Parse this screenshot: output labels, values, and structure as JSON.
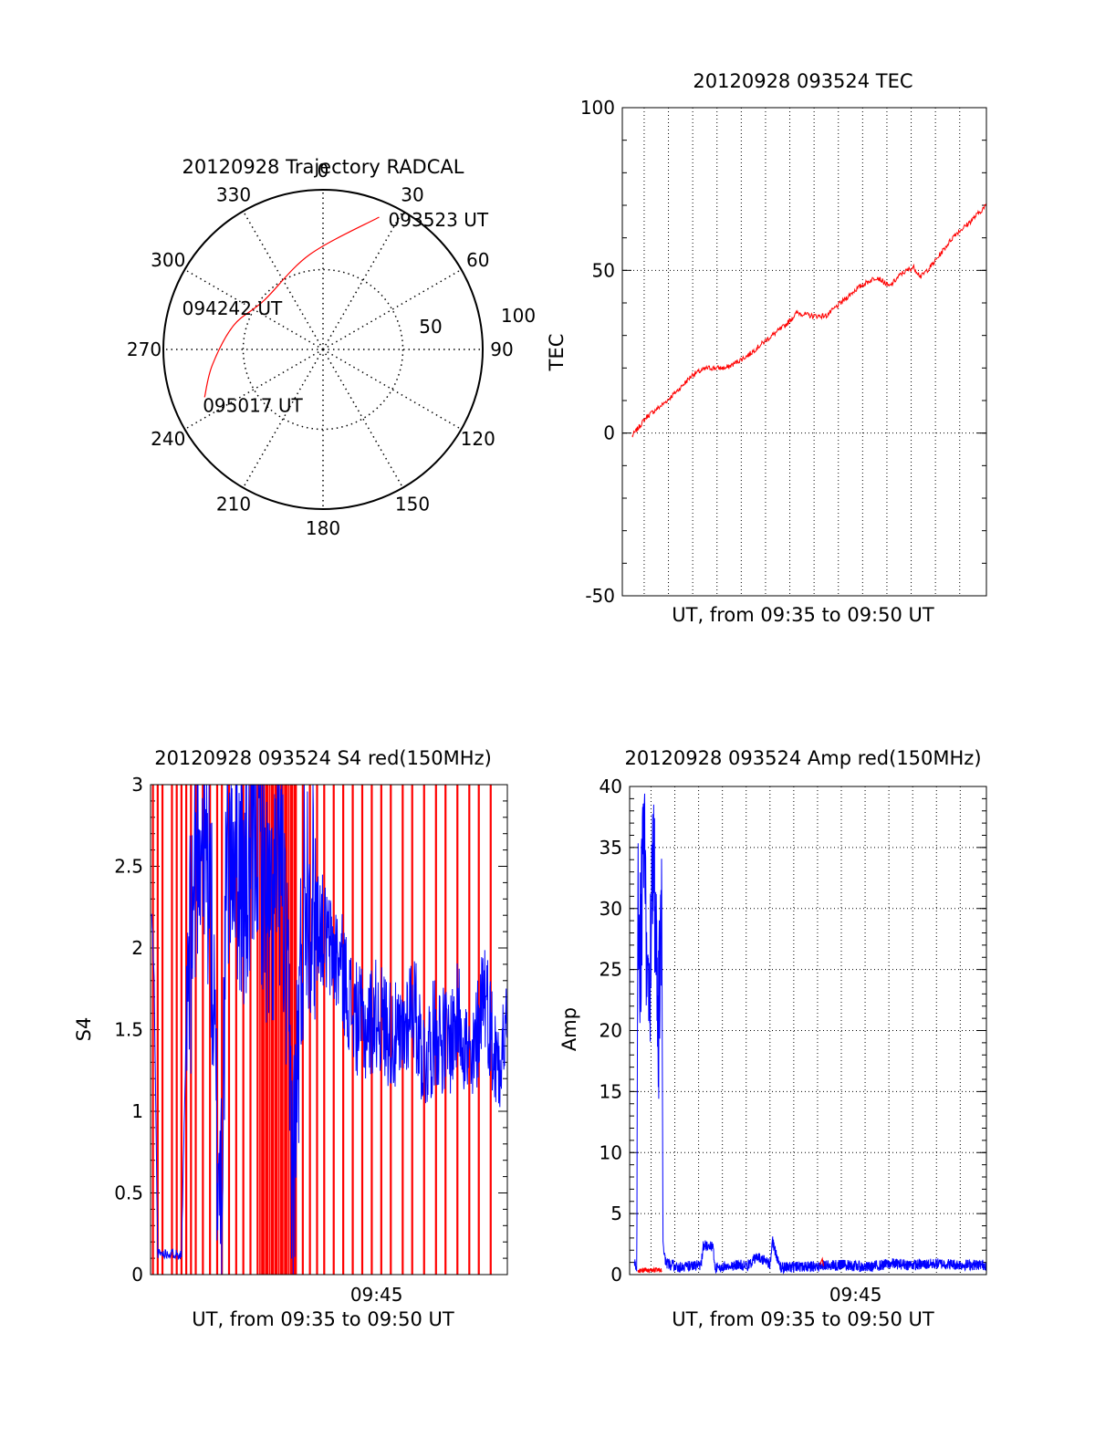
{
  "colors": {
    "red": "#ff0000",
    "blue": "#0000ff",
    "axis": "#000000",
    "grid": "#000000"
  },
  "chart_data": [
    {
      "id": "trajectory",
      "type": "polar",
      "title": "20120928 Trajectory RADCAL",
      "angle_labels": [
        "0",
        "30",
        "60",
        "90",
        "120",
        "150",
        "180",
        "210",
        "240",
        "270",
        "300",
        "330"
      ],
      "radial_labels": [
        "50",
        "100"
      ],
      "rlim": [
        0,
        100
      ],
      "radial_gridlines": [
        50
      ],
      "angle_gridlines": [
        0,
        30,
        60,
        90,
        120,
        150,
        180,
        210,
        240,
        270,
        300,
        330
      ],
      "trajectory_color": "red",
      "trajectory": [
        {
          "az": 23,
          "r": 90
        },
        {
          "az": 352,
          "r": 60
        },
        {
          "az": 310,
          "r": 48
        },
        {
          "az": 285,
          "r": 58
        },
        {
          "az": 262,
          "r": 70
        },
        {
          "az": 248,
          "r": 80
        }
      ],
      "annotations": [
        {
          "text": "093523 UT",
          "az": 23,
          "r": 90
        },
        {
          "text": "094242 UT",
          "az": 310,
          "r": 48
        },
        {
          "text": "095017 UT",
          "az": 248,
          "r": 80
        }
      ]
    },
    {
      "id": "tec",
      "type": "line",
      "title": "20120928 093524 TEC",
      "xlabel": "UT, from 09:35 to 09:50 UT",
      "ylabel": "TEC",
      "xlim": [
        0,
        15
      ],
      "ylim": [
        -50,
        100
      ],
      "yticks": [
        -50,
        0,
        50,
        100
      ],
      "x_gridlines": [
        0.9,
        1.9,
        2.9,
        3.9,
        4.9,
        5.9,
        6.9,
        7.9,
        8.9,
        9.9,
        10.9,
        11.9,
        12.9,
        13.9
      ],
      "y_gridlines": [
        0,
        50
      ],
      "series": [
        {
          "color": "red",
          "x": [
            0.4,
            1.0,
            1.7,
            2.4,
            2.9,
            3.5,
            4.3,
            5.2,
            6.0,
            6.7,
            7.2,
            7.8,
            8.4,
            9.0,
            9.6,
            10.0,
            10.5,
            11.0,
            11.5,
            12.0,
            12.3,
            12.8,
            13.3,
            13.7,
            14.2,
            14.6,
            15.0
          ],
          "y": [
            -1,
            5,
            9,
            14,
            18,
            20,
            20,
            24,
            29,
            33,
            37,
            36,
            36,
            40,
            44,
            46,
            48,
            45,
            49,
            51,
            48,
            52,
            57,
            61,
            64,
            67,
            70
          ]
        }
      ]
    },
    {
      "id": "s4",
      "type": "line",
      "title": "20120928 093524 S4 red(150MHz)",
      "xlabel": "UT, from 09:35 to 09:50 UT",
      "ylabel": "S4",
      "xlim": [
        0,
        15
      ],
      "ylim": [
        0,
        3
      ],
      "yticks": [
        "0",
        "0.5",
        "1",
        "1.5",
        "2",
        "2.5",
        "3"
      ],
      "xtick_labels": [
        {
          "x": 9.5,
          "label": "09:45"
        }
      ],
      "red_spike_times": [
        0.1,
        0.3,
        0.5,
        0.9,
        1.1,
        1.3,
        1.5,
        1.7,
        1.9,
        2.2,
        2.5,
        2.8,
        3.0,
        3.3,
        3.6,
        3.9,
        4.2,
        4.5,
        4.7,
        4.9,
        5.1,
        5.3,
        5.5,
        5.7,
        5.9,
        6.1,
        6.4,
        6.7,
        7.0,
        7.3,
        7.7,
        8.1,
        8.5,
        8.9,
        9.3,
        9.7,
        10.1,
        10.6,
        11.0,
        11.5,
        12.0,
        12.4,
        12.9,
        13.4,
        13.8,
        14.3
      ],
      "red_dense_band": [
        4.6,
        6.2
      ],
      "series": [
        {
          "color": "blue",
          "x": [
            0.05,
            0.15,
            0.3,
            0.6,
            1.0,
            1.3,
            1.5,
            2.0,
            2.5,
            2.8,
            3.0,
            3.2,
            3.5,
            4.0,
            4.5,
            5.0,
            5.5,
            6.0,
            6.5,
            7.0,
            7.5,
            8.0,
            8.5,
            9.0,
            9.5,
            10.0,
            10.5,
            11.0,
            11.5,
            12.0,
            12.5,
            13.0,
            13.5,
            14.0,
            14.5,
            15.0
          ],
          "y": [
            2.2,
            1.8,
            0.13,
            0.13,
            0.13,
            0.12,
            1.5,
            2.8,
            2.4,
            0.75,
            0.65,
            2.5,
            2.7,
            2.3,
            2.8,
            2.1,
            2.6,
            0.6,
            2.5,
            2.2,
            2.0,
            1.9,
            1.6,
            1.5,
            1.6,
            1.5,
            1.4,
            1.7,
            1.3,
            1.5,
            1.4,
            1.6,
            1.2,
            1.8,
            1.3,
            1.5
          ]
        }
      ]
    },
    {
      "id": "amp",
      "type": "line",
      "title": "20120928 093524 Amp red(150MHz)",
      "xlabel": "UT, from 09:35 to 09:50 UT",
      "ylabel": "Amp",
      "xlim": [
        0,
        15
      ],
      "ylim": [
        0,
        40
      ],
      "yticks": [
        0,
        5,
        10,
        15,
        20,
        25,
        30,
        35,
        40
      ],
      "xtick_labels": [
        {
          "x": 9.5,
          "label": "09:45"
        }
      ],
      "x_gridlines": [
        0.9,
        1.9,
        2.9,
        3.9,
        4.9,
        5.9,
        6.9,
        7.9,
        8.9,
        9.9,
        10.9,
        11.9,
        12.9,
        13.9
      ],
      "y_gridlines": [
        5,
        10,
        15,
        20,
        25,
        30,
        35
      ],
      "series": [
        {
          "color": "blue",
          "x": [
            0.2,
            0.3,
            0.35,
            0.45,
            0.6,
            0.8,
            1.0,
            1.2,
            1.35,
            1.4,
            1.5,
            2.0,
            3.0,
            3.1,
            3.5,
            3.6,
            4.0,
            5.0,
            5.4,
            5.9,
            6.0,
            6.3,
            7.0,
            8.0,
            9.0,
            10.0,
            11.0,
            12.0,
            13.0,
            14.0,
            15.0
          ],
          "y": [
            1.0,
            0.5,
            33,
            26,
            37,
            20,
            35,
            19,
            32,
            3,
            1.0,
            0.6,
            0.8,
            2.4,
            2.3,
            0.5,
            0.7,
            0.8,
            1.5,
            0.8,
            2.8,
            0.6,
            0.6,
            0.7,
            0.8,
            0.6,
            0.9,
            0.8,
            0.9,
            0.8,
            0.8
          ]
        },
        {
          "color": "red",
          "x": [
            0.35,
            0.6,
            0.9,
            1.2,
            1.35,
            8.0,
            8.1
          ],
          "y": [
            0.3,
            0.4,
            0.3,
            0.4,
            0.3,
            0.8,
            1.3
          ]
        }
      ]
    }
  ]
}
